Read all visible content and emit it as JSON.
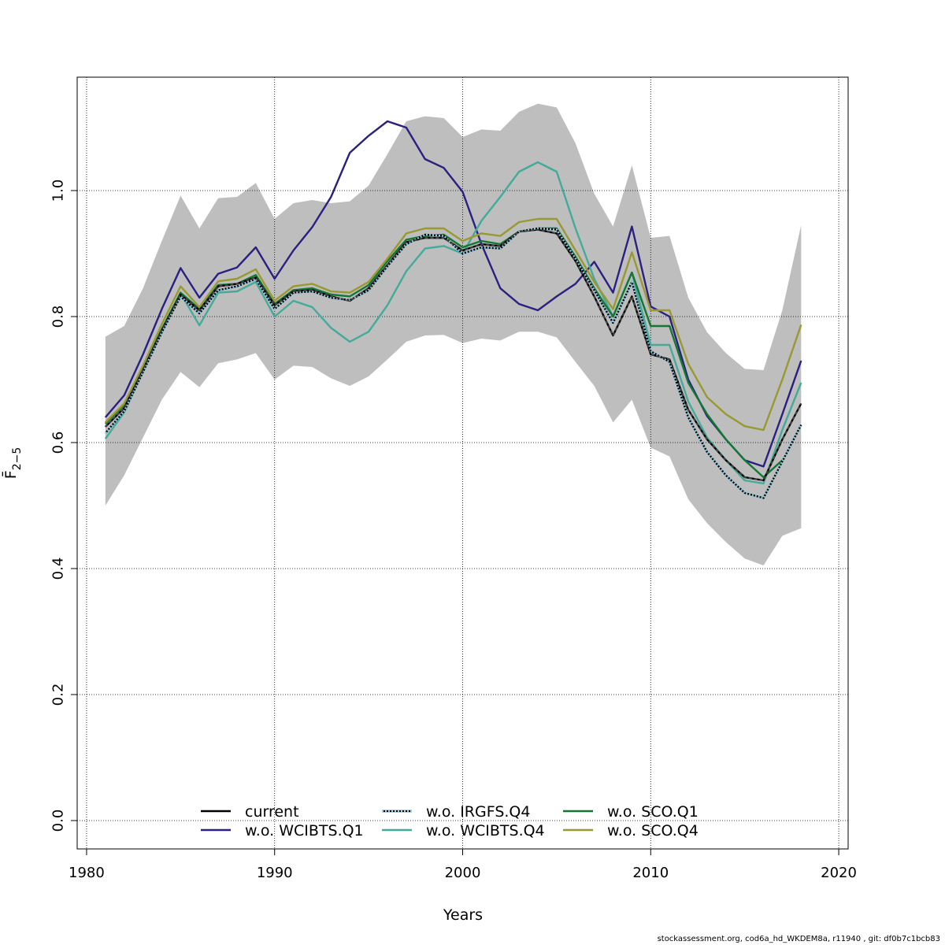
{
  "chart_data": {
    "type": "line",
    "xlabel": "Years",
    "ylabel": "F̄",
    "ylabel_subscript": "2−5",
    "xlim": [
      1979.5,
      2020.5
    ],
    "ylim": [
      -0.045,
      1.18
    ],
    "xticks": [
      1980,
      1990,
      2000,
      2010,
      2020
    ],
    "yticks": [
      0.0,
      0.2,
      0.4,
      0.6,
      0.8,
      1.0
    ],
    "ytick_labels": [
      "0.0",
      "0.2",
      "0.4",
      "0.6",
      "0.8",
      "1.0"
    ],
    "grid": true,
    "confidence_band": {
      "x": [
        1981,
        1982,
        1983,
        1984,
        1985,
        1986,
        1987,
        1988,
        1989,
        1990,
        1991,
        1992,
        1993,
        1994,
        1995,
        1996,
        1997,
        1998,
        1999,
        2000,
        2001,
        2002,
        2003,
        2004,
        2005,
        2006,
        2007,
        2008,
        2009,
        2010,
        2011,
        2012,
        2013,
        2014,
        2015,
        2016,
        2017,
        2018
      ],
      "upper": [
        0.768,
        0.785,
        0.845,
        0.92,
        0.992,
        0.94,
        0.988,
        0.99,
        1.012,
        0.955,
        0.98,
        0.985,
        0.98,
        0.983,
        1.008,
        1.058,
        1.11,
        1.118,
        1.115,
        1.085,
        1.097,
        1.095,
        1.125,
        1.138,
        1.132,
        1.075,
        0.995,
        0.943,
        1.04,
        0.925,
        0.928,
        0.83,
        0.775,
        0.742,
        0.717,
        0.715,
        0.81,
        0.945
      ],
      "lower": [
        0.5,
        0.548,
        0.608,
        0.668,
        0.712,
        0.688,
        0.726,
        0.732,
        0.742,
        0.7,
        0.722,
        0.72,
        0.702,
        0.69,
        0.705,
        0.732,
        0.76,
        0.77,
        0.771,
        0.758,
        0.765,
        0.762,
        0.776,
        0.776,
        0.767,
        0.728,
        0.69,
        0.632,
        0.668,
        0.592,
        0.578,
        0.51,
        0.472,
        0.442,
        0.416,
        0.405,
        0.452,
        0.464
      ]
    },
    "x": [
      1981,
      1982,
      1983,
      1984,
      1985,
      1986,
      1987,
      1988,
      1989,
      1990,
      1991,
      1992,
      1993,
      1994,
      1995,
      1996,
      1997,
      1998,
      1999,
      2000,
      2001,
      2002,
      2003,
      2004,
      2005,
      2006,
      2007,
      2008,
      2009,
      2010,
      2011,
      2012,
      2013,
      2014,
      2015,
      2016,
      2017,
      2018
    ],
    "series": [
      {
        "name": "current",
        "color": "#000000",
        "style": "solid",
        "values": [
          0.625,
          0.655,
          0.715,
          0.778,
          0.835,
          0.81,
          0.848,
          0.852,
          0.862,
          0.818,
          0.84,
          0.842,
          0.832,
          0.825,
          0.845,
          0.882,
          0.918,
          0.925,
          0.925,
          0.905,
          0.915,
          0.912,
          0.935,
          0.938,
          0.932,
          0.888,
          0.832,
          0.77,
          0.832,
          0.74,
          0.732,
          0.652,
          0.605,
          0.572,
          0.545,
          0.54,
          0.605,
          0.662
        ]
      },
      {
        "name": "w.o. WCIBTS.Q1",
        "color": "#2a2080",
        "style": "solid",
        "values": [
          0.64,
          0.675,
          0.74,
          0.812,
          0.877,
          0.83,
          0.868,
          0.878,
          0.91,
          0.86,
          0.905,
          0.942,
          0.99,
          1.06,
          1.087,
          1.11,
          1.1,
          1.05,
          1.036,
          0.998,
          0.915,
          0.845,
          0.82,
          0.81,
          0.832,
          0.852,
          0.887,
          0.838,
          0.943,
          0.816,
          0.8,
          0.7,
          0.642,
          0.605,
          0.572,
          0.562,
          0.645,
          0.73
        ]
      },
      {
        "name": "w.o. IRGFS.Q4",
        "color": "#87ceeb",
        "style": "dotted",
        "values": [
          0.615,
          0.65,
          0.712,
          0.775,
          0.832,
          0.805,
          0.842,
          0.848,
          0.86,
          0.812,
          0.838,
          0.84,
          0.83,
          0.826,
          0.842,
          0.88,
          0.915,
          0.93,
          0.928,
          0.9,
          0.91,
          0.908,
          0.935,
          0.94,
          0.938,
          0.892,
          0.842,
          0.79,
          0.855,
          0.745,
          0.728,
          0.64,
          0.585,
          0.548,
          0.52,
          0.512,
          0.57,
          0.628
        ]
      },
      {
        "name": "w.o. WCIBTS.Q4",
        "color": "#44aa99",
        "style": "solid",
        "values": [
          0.606,
          0.648,
          0.712,
          0.775,
          0.837,
          0.786,
          0.838,
          0.84,
          0.855,
          0.8,
          0.825,
          0.815,
          0.782,
          0.76,
          0.776,
          0.818,
          0.872,
          0.908,
          0.912,
          0.9,
          0.952,
          0.99,
          1.03,
          1.045,
          1.03,
          0.94,
          0.86,
          0.8,
          0.87,
          0.755,
          0.755,
          0.665,
          0.608,
          0.572,
          0.54,
          0.535,
          0.62,
          0.695
        ]
      },
      {
        "name": "w.o. SCO.Q1",
        "color": "#117733",
        "style": "solid",
        "values": [
          0.63,
          0.66,
          0.718,
          0.78,
          0.838,
          0.812,
          0.85,
          0.852,
          0.866,
          0.82,
          0.842,
          0.845,
          0.835,
          0.832,
          0.85,
          0.888,
          0.922,
          0.928,
          0.93,
          0.91,
          0.92,
          0.915,
          0.935,
          0.94,
          0.94,
          0.895,
          0.845,
          0.8,
          0.87,
          0.785,
          0.785,
          0.695,
          0.645,
          0.605,
          0.572,
          0.545,
          0.572,
          null
        ]
      },
      {
        "name": "w.o. SCO.Q4",
        "color": "#999933",
        "style": "solid",
        "values": [
          0.632,
          0.662,
          0.722,
          0.788,
          0.848,
          0.815,
          0.856,
          0.86,
          0.875,
          0.825,
          0.848,
          0.852,
          0.84,
          0.838,
          0.855,
          0.892,
          0.932,
          0.94,
          0.94,
          0.92,
          0.932,
          0.928,
          0.95,
          0.955,
          0.955,
          0.905,
          0.855,
          0.812,
          0.902,
          0.81,
          0.81,
          0.725,
          0.672,
          0.645,
          0.626,
          0.62,
          0.7,
          0.787
        ]
      }
    ],
    "legend_position": "bottom-center"
  },
  "footer": "stockassessment.org, cod6a_hd_WKDEM8a, r11940 , git: df0b7c1bcb83"
}
